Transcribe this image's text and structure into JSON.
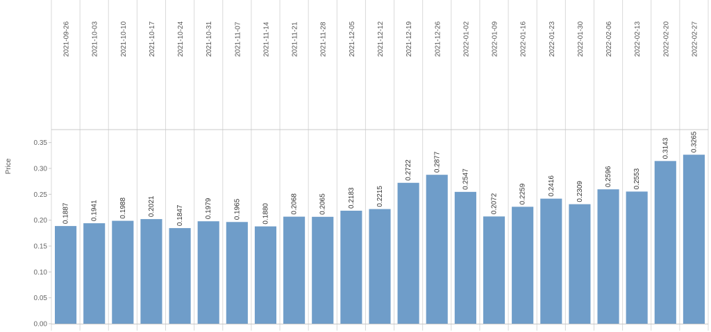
{
  "chart_data": {
    "type": "bar",
    "title": "",
    "xlabel": "",
    "ylabel": "Price",
    "ylim": [
      0,
      0.375
    ],
    "yticks": [
      0.0,
      0.05,
      0.1,
      0.15,
      0.2,
      0.25,
      0.3,
      0.35
    ],
    "ytick_labels": [
      "0.00",
      "0.05",
      "0.10",
      "0.15",
      "0.20",
      "0.25",
      "0.30",
      "0.35"
    ],
    "categories": [
      "2021-09-26",
      "2021-10-03",
      "2021-10-10",
      "2021-10-17",
      "2021-10-24",
      "2021-10-31",
      "2021-11-07",
      "2021-11-14",
      "2021-11-21",
      "2021-11-28",
      "2021-12-05",
      "2021-12-12",
      "2021-12-19",
      "2021-12-26",
      "2022-01-02",
      "2022-01-09",
      "2022-01-16",
      "2022-01-23",
      "2022-01-30",
      "2022-02-06",
      "2022-02-13",
      "2022-02-20",
      "2022-02-27"
    ],
    "values": [
      0.1887,
      0.1941,
      0.1988,
      0.2021,
      0.1847,
      0.1979,
      0.1965,
      0.188,
      0.2068,
      0.2065,
      0.2183,
      0.2215,
      0.2722,
      0.2877,
      0.2547,
      0.2072,
      0.2259,
      0.2416,
      0.2309,
      0.2596,
      0.2553,
      0.3143,
      0.3265
    ],
    "value_labels": [
      "0.1887",
      "0.1941",
      "0.1988",
      "0.2021",
      "0.1847",
      "0.1979",
      "0.1965",
      "0.1880",
      "0.2068",
      "0.2065",
      "0.2183",
      "0.2215",
      "0.2722",
      "0.2877",
      "0.2547",
      "0.2072",
      "0.2259",
      "0.2416",
      "0.2309",
      "0.2596",
      "0.2553",
      "0.3143",
      "0.3265"
    ],
    "bar_color": "#6f9dc9",
    "grid": false,
    "legend": "none"
  }
}
